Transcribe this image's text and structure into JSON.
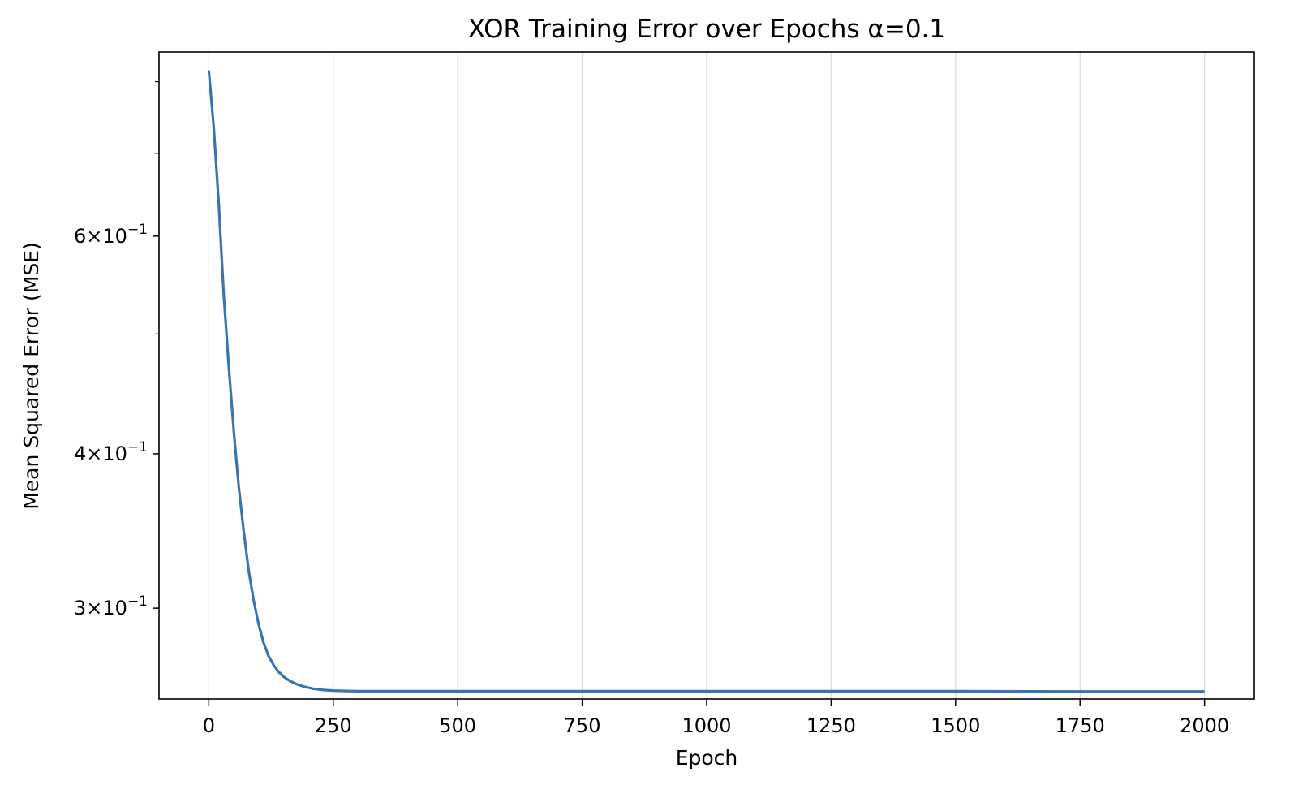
{
  "chart_data": {
    "type": "line",
    "title": "XOR Training Error over Epochs α=0.1",
    "xlabel": "Epoch",
    "ylabel": "Mean Squared Error (MSE)",
    "xlim": [
      -100,
      2100
    ],
    "ylim": [
      0.2533,
      0.8455
    ],
    "yscale": "log",
    "grid": "x-only",
    "line_color": "#3a74b0",
    "x_ticks": [
      0,
      250,
      500,
      750,
      1000,
      1250,
      1500,
      1750,
      2000
    ],
    "x_tick_labels": [
      "0",
      "250",
      "500",
      "750",
      "1000",
      "1250",
      "1500",
      "1750",
      "2000"
    ],
    "y_ticks_major": [
      {
        "value": 0.3,
        "mantissa": "3",
        "times": "×",
        "base": "10",
        "exp": "−1"
      },
      {
        "value": 0.4,
        "mantissa": "4",
        "times": "×",
        "base": "10",
        "exp": "−1"
      },
      {
        "value": 0.6,
        "mantissa": "6",
        "times": "×",
        "base": "10",
        "exp": "−1"
      }
    ],
    "y_ticks_minor": [
      0.5,
      0.7,
      0.8
    ],
    "series": [
      {
        "x": [
          0,
          10,
          20,
          30,
          40,
          50,
          60,
          70,
          80,
          90,
          100,
          110,
          120,
          130,
          140,
          150,
          160,
          175,
          190,
          210,
          230,
          250,
          275,
          300,
          350,
          400,
          500,
          750,
          1000,
          1250,
          1500,
          1750,
          2000
        ],
        "values": [
          0.8171,
          0.734,
          0.637,
          0.538,
          0.4715,
          0.418,
          0.3767,
          0.3467,
          0.322,
          0.3046,
          0.2912,
          0.2813,
          0.2745,
          0.2699,
          0.2665,
          0.2641,
          0.2624,
          0.2605,
          0.2593,
          0.2582,
          0.2576,
          0.2573,
          0.2571,
          0.257,
          0.257,
          0.257,
          0.257,
          0.257,
          0.257,
          0.257,
          0.257,
          0.2569,
          0.2569
        ]
      }
    ]
  }
}
